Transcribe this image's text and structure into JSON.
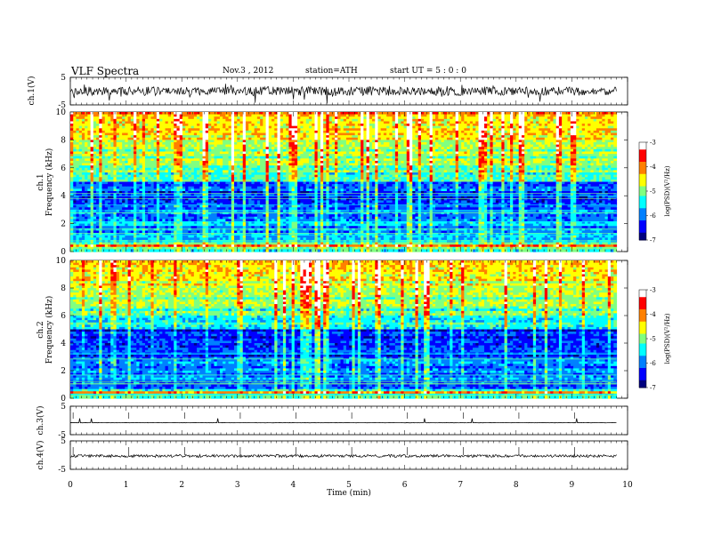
{
  "header": {
    "title": "VLF  Spectra",
    "date": "Nov.3  , 2012",
    "station": "station=ATH",
    "start_time": "start  UT  =   5  : 0  : 0"
  },
  "chart_data": {
    "type": "heatmap",
    "title": "VLF  Spectra",
    "xlabel": "Time  (min)",
    "xlim": [
      0,
      10
    ],
    "x_ticks": [
      "0",
      "1",
      "2",
      "3",
      "4",
      "5",
      "6",
      "7",
      "8",
      "9",
      "10"
    ],
    "data_end_min": 9.8,
    "panels": [
      {
        "id": "ch1-waveform",
        "type": "line",
        "ylabel": "ch.1(V)",
        "ylim": [
          -5,
          5
        ],
        "y_ticks": [
          "5",
          "-5"
        ],
        "baseline": 0,
        "noise_level": "high"
      },
      {
        "id": "ch1-spectrogram",
        "type": "heatmap",
        "ylabel_line1": "ch.1",
        "ylabel_line2": "Frequency  (kHz)",
        "ylim": [
          0,
          10
        ],
        "y_ticks": [
          "0",
          "2",
          "4",
          "6",
          "8",
          "10"
        ],
        "colorbar_label": "log(PSD)(V²/Hz)",
        "colorbar_range": [
          -7,
          -3
        ],
        "colorbar_ticks": [
          "-3",
          "-4",
          "-5",
          "-6",
          "-7"
        ]
      },
      {
        "id": "ch2-spectrogram",
        "type": "heatmap",
        "ylabel_line1": "ch.2",
        "ylabel_line2": "Frequency  (kHz)",
        "ylim": [
          0,
          10
        ],
        "y_ticks": [
          "0",
          "2",
          "4",
          "6",
          "8",
          "10"
        ],
        "colorbar_label": "log(PSD)(V²/Hz)",
        "colorbar_range": [
          -7,
          -3
        ],
        "colorbar_ticks": [
          "-3",
          "-4",
          "-5",
          "-6",
          "-7"
        ]
      },
      {
        "id": "ch3-waveform",
        "type": "line",
        "ylabel": "ch.3(V)",
        "ylim": [
          -5,
          5
        ],
        "y_ticks": [
          "5",
          "-5"
        ],
        "baseline": -0.8,
        "noise_level": "low"
      },
      {
        "id": "ch4-waveform",
        "type": "line",
        "ylabel": "ch.4(V)",
        "ylim": [
          -5,
          5
        ],
        "y_ticks": [
          "5",
          "-5"
        ],
        "baseline": -0.3,
        "noise_level": "medium"
      }
    ],
    "colormap": [
      "#00007f",
      "#0000ff",
      "#0080ff",
      "#00ffff",
      "#80ff80",
      "#ffff00",
      "#ff8000",
      "#ff0000",
      "#ffffff"
    ]
  }
}
